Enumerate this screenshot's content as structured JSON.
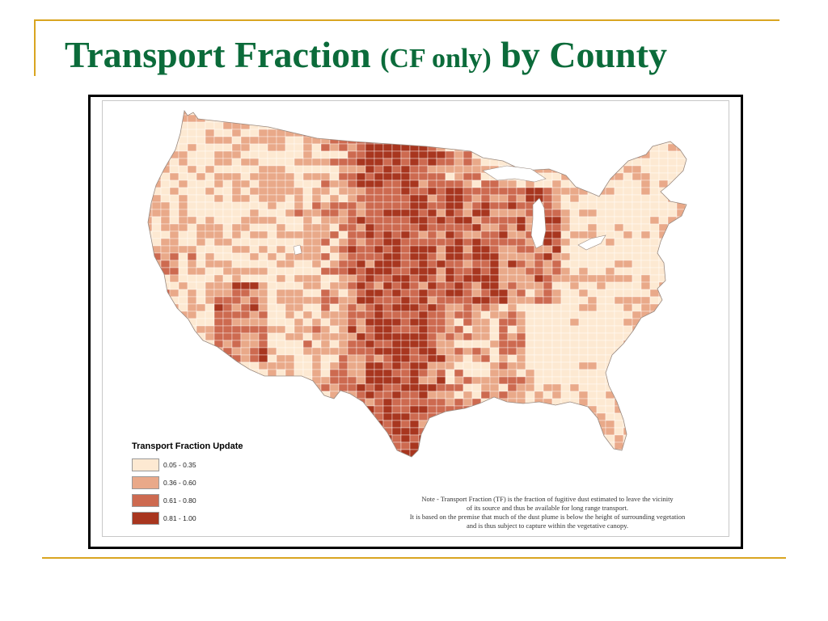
{
  "slide": {
    "title_main": "Transport Fraction ",
    "title_paren": "(CF only)",
    "title_tail": " by County"
  },
  "legend": {
    "title": "Transport Fraction Update",
    "items": [
      {
        "label": "0.05 - 0.35",
        "color": "#fde9d2"
      },
      {
        "label": "0.36 - 0.60",
        "color": "#e9a989"
      },
      {
        "label": "0.61 - 0.80",
        "color": "#cd6a50"
      },
      {
        "label": "0.81 - 1.00",
        "color": "#a8361f"
      }
    ]
  },
  "note": {
    "lines": [
      "Note - Transport Fraction (TF) is the fraction of fugitive dust estimated to leave the vicinity",
      "of its source and thus be available for long range transport.",
      "It is based on the premise that much of the dust plume is below the height of surrounding vegetation",
      "and is thus subject to capture within the vegetative canopy."
    ]
  },
  "colors": {
    "accent_line": "#d9a521",
    "title_color": "#0b6b3a",
    "county_border": "#ffffff"
  }
}
